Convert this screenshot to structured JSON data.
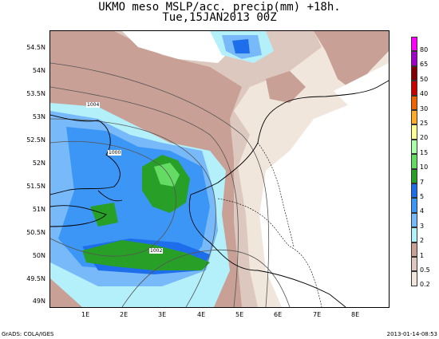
{
  "title_line1": "UKMO meso MSLP/acc. precip(mm) +18h.",
  "title_line2": "Tue,15JAN2013 00Z",
  "footer_left": "GrADS: COLA/IGES",
  "footer_right": "2013-01-14-08:53",
  "lat_labels": [
    "54.5N",
    "54N",
    "53.5N",
    "53N",
    "52.5N",
    "52N",
    "51.5N",
    "51N",
    "50.5N",
    "50N",
    "49.5N",
    "49N"
  ],
  "lon_labels": [
    "1E",
    "2E",
    "3E",
    "4E",
    "5E",
    "6E",
    "7E",
    "8E"
  ],
  "isobar_labels": [
    "1004",
    "1000",
    "1002"
  ],
  "legend": [
    {
      "label": "80",
      "color": "#ff00ff"
    },
    {
      "label": "65",
      "color": "#a000c8"
    },
    {
      "label": "50",
      "color": "#820000"
    },
    {
      "label": "40",
      "color": "#c80000"
    },
    {
      "label": "30",
      "color": "#f06400"
    },
    {
      "label": "25",
      "color": "#ffaa28"
    },
    {
      "label": "20",
      "color": "#ffff96"
    },
    {
      "label": "15",
      "color": "#aaffaa"
    },
    {
      "label": "10",
      "color": "#64dc64"
    },
    {
      "label": "7",
      "color": "#28a028"
    },
    {
      "label": "5",
      "color": "#1e6eeb"
    },
    {
      "label": "4",
      "color": "#3c96f5"
    },
    {
      "label": "3",
      "color": "#78b9fa"
    },
    {
      "label": "2",
      "color": "#b4f0fa"
    },
    {
      "label": "1",
      "color": "#c8a096"
    },
    {
      "label": "0.5",
      "color": "#dcc8be"
    },
    {
      "label": "0.2",
      "color": "#f0e6dc"
    }
  ]
}
